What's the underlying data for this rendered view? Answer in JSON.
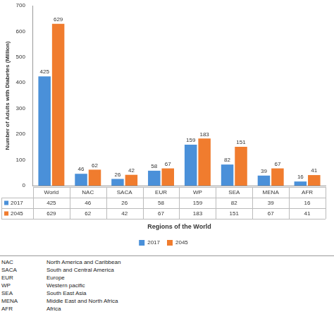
{
  "chart_data": {
    "type": "bar",
    "y_label": "Number of Adults with Diabetes (Million)",
    "x_label": "Regions of the World",
    "categories": [
      "World",
      "NAC",
      "SACA",
      "EUR",
      "WP",
      "SEA",
      "MENA",
      "AFR"
    ],
    "series": [
      {
        "name": "2017",
        "color": "#4a90d9",
        "values": [
          425,
          46,
          26,
          58,
          159,
          82,
          39,
          16
        ]
      },
      {
        "name": "2045",
        "color": "#f07c2e",
        "values": [
          629,
          62,
          42,
          67,
          183,
          151,
          67,
          41
        ]
      }
    ],
    "ylim": [
      0,
      700
    ],
    "yticks": [
      0,
      100,
      200,
      300,
      400,
      500,
      600,
      700
    ],
    "grid": false,
    "legend": "bottom",
    "data_labels": true
  },
  "glossary": [
    {
      "abbr": "NAC",
      "name": "North America and Caribbean"
    },
    {
      "abbr": "SACA",
      "name": "South and Central America"
    },
    {
      "abbr": "EUR",
      "name": "Europe"
    },
    {
      "abbr": "WP",
      "name": "Western pacific"
    },
    {
      "abbr": "SEA",
      "name": "South East Asia"
    },
    {
      "abbr": "MENA",
      "name": "Middle East and North Africa"
    },
    {
      "abbr": "AFR",
      "name": "Africa"
    }
  ]
}
